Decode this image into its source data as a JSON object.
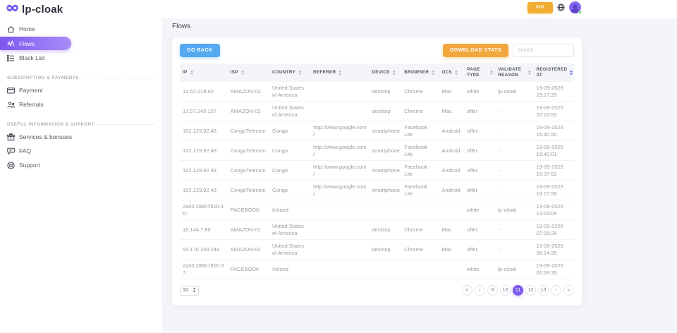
{
  "brand": {
    "name": "lp-cloak"
  },
  "topbar": {
    "vip_label": "VIP"
  },
  "sidebar": {
    "items": [
      {
        "label": "Home",
        "icon": "home-icon",
        "active": false
      },
      {
        "label": "Flows",
        "icon": "flows-icon",
        "active": true
      },
      {
        "label": "Black List",
        "icon": "list-icon",
        "active": false
      }
    ],
    "sections": [
      {
        "title": "SUBSCRIPTION & PAYMENTS",
        "items": [
          {
            "label": "Payment",
            "icon": "credit-card-icon"
          },
          {
            "label": "Referrals",
            "icon": "people-icon"
          }
        ]
      },
      {
        "title": "USEFUL INFORMATION & SUPPORT",
        "items": [
          {
            "label": "Services & bonuses",
            "icon": "gift-icon"
          },
          {
            "label": "FAQ",
            "icon": "chat-icon"
          },
          {
            "label": "Support",
            "icon": "lifebuoy-icon"
          }
        ]
      }
    ]
  },
  "page": {
    "title": "Flows"
  },
  "toolbar": {
    "go_back_label": "GO BACK",
    "download_label": "DOWNLOAD STATS",
    "search_placeholder": "Search..."
  },
  "table": {
    "columns": [
      "IP",
      "ISP",
      "COUNTRY",
      "REFERER",
      "DEVICE",
      "BROWSER",
      "OCS",
      "PAGE TYPE",
      "VALIDATE REASON",
      "REGISTERED AT"
    ],
    "sorted_column_index": 9,
    "rows": [
      [
        "13.52.218.60",
        "AMAZON-02",
        "United States of America",
        "",
        "desktop",
        "Chrome",
        "Mac",
        "white",
        "lp-cloak",
        "19-09-2025 23:17:29"
      ],
      [
        "13.57.249.137",
        "AMAZON-02",
        "United States of America",
        "",
        "desktop",
        "Chrome",
        "Mac",
        "offer",
        "-",
        "19-09-2025 22:23:50"
      ],
      [
        "102.129.92.48",
        "CongoTelecom",
        "Congo",
        "http://www.google.com/",
        "smartphone",
        "Facebook Lite",
        "Android",
        "offer",
        "-",
        "19-09-2025 16:40:50"
      ],
      [
        "102.129.92.48",
        "CongoTelecom",
        "Congo",
        "http://www.google.com/",
        "smartphone",
        "Facebook Lite",
        "Android",
        "offer",
        "-",
        "19-09-2025 16:40:01"
      ],
      [
        "102.129.92.48",
        "CongoTelecom",
        "Congo",
        "http://www.google.com/",
        "smartphone",
        "Facebook Lite",
        "Android",
        "offer",
        "-",
        "19-09-2025 16:37:52"
      ],
      [
        "102.129.92.48",
        "CongoTelecom",
        "Congo",
        "http://www.google.com/",
        "smartphone",
        "Facebook Lite",
        "Android",
        "offer",
        "-",
        "19-09-2025 16:27:59"
      ],
      [
        "2a03:2880:f800:1b::",
        "FACEBOOK",
        "Ireland",
        "",
        "",
        "",
        "",
        "white",
        "lp-cloak",
        "19-09-2025 13:03:09"
      ],
      [
        "18.144.7.80",
        "AMAZON-02",
        "United States of America",
        "",
        "desktop",
        "Chrome",
        "Mac",
        "offer",
        "-",
        "19-09-2025 07:09:26"
      ],
      [
        "54.176.249.249",
        "AMAZON-02",
        "United States of America",
        "",
        "desktop",
        "Chrome",
        "Mac",
        "offer",
        "-",
        "19-09-2025 06:14:35"
      ],
      [
        "2a03:2880:f800:37::",
        "FACEBOOK",
        "Ireland",
        "",
        "",
        "",
        "",
        "white",
        "lp-cloak",
        "19-09-2025 00:58:35"
      ]
    ]
  },
  "pagination": {
    "per_page": "10",
    "pages": [
      "9",
      "10",
      "11",
      "12",
      "13"
    ],
    "active_page": "11",
    "controls": {
      "first": "«",
      "prev": "‹",
      "next": "›",
      "last": "»"
    }
  },
  "colors": {
    "accent_purple": "#7d5bee",
    "gradient_purple_light": "#a98df8",
    "button_blue": "#55a9f0",
    "button_orange": "#f2a73d",
    "vip_orange": "#f0ad31",
    "status_green": "#3ecf5e",
    "page_background": "#f4f5f9",
    "sorted_icon_blue": "#5b6ff0"
  }
}
